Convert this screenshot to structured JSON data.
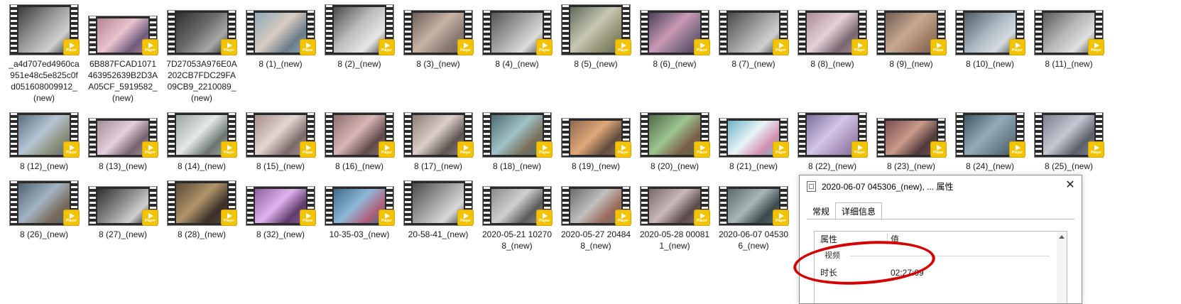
{
  "files": [
    {
      "name": "_a4d707ed4960ca951e48c5e825c0fd051608009912_(new)",
      "colors": [
        "#3a3a3a",
        "#9a9a9a",
        "#cfcfcf"
      ]
    },
    {
      "name": "6B887FCAD1071463952639B2D3AA05CF_5919582_(new)",
      "colors": [
        "#b3838f",
        "#e9c3cf",
        "#6e5a7a"
      ]
    },
    {
      "name": "7D27053A976E0A202CB7FDC29FA09CB9_2210089_(new)",
      "colors": [
        "#2f2f2f",
        "#6a6a6a",
        "#a8a8a8"
      ]
    },
    {
      "name": "8 (1)_(new)",
      "colors": [
        "#8fa7b6",
        "#d8ccc2",
        "#6a7b88"
      ]
    },
    {
      "name": "8 (2)_(new)",
      "colors": [
        "#4a4a4a",
        "#bdbdbd",
        "#e6e6e6"
      ]
    },
    {
      "name": "8 (3)_(new)",
      "colors": [
        "#6a5e58",
        "#c9b3a6",
        "#8a7b72"
      ]
    },
    {
      "name": "8 (4)_(new)",
      "colors": [
        "#555555",
        "#a6a6a6",
        "#dcdcdc"
      ]
    },
    {
      "name": "8 (5)_(new)",
      "colors": [
        "#5d6a5a",
        "#c7c7b5",
        "#8f8f70"
      ]
    },
    {
      "name": "8 (6)_(new)",
      "colors": [
        "#4c3f5a",
        "#c99ab5",
        "#7b6680"
      ]
    },
    {
      "name": "8 (7)_(new)",
      "colors": [
        "#4a4a4a",
        "#9c9c9c",
        "#d0d0d0"
      ]
    },
    {
      "name": "8 (8)_(new)",
      "colors": [
        "#a88c94",
        "#e5d0d7",
        "#786670"
      ]
    },
    {
      "name": "8 (9)_(new)",
      "colors": [
        "#6f5b52",
        "#c7a98f",
        "#9e7c63"
      ]
    },
    {
      "name": "8 (10)_(new)",
      "colors": [
        "#4f5a63",
        "#a7b4bf",
        "#d5dbe0"
      ]
    },
    {
      "name": "8 (11)_(new)",
      "colors": [
        "#5a5a5a",
        "#b4b4b4",
        "#e0e0e0"
      ]
    },
    {
      "name": "8 (12)_(new)",
      "colors": [
        "#5b6a7a",
        "#b7c6d4",
        "#8a8f7a"
      ]
    },
    {
      "name": "8 (13)_(new)",
      "colors": [
        "#a38d99",
        "#e3d0da",
        "#776270"
      ]
    },
    {
      "name": "8 (14)_(new)",
      "colors": [
        "#9aa3a0",
        "#e4e8e6",
        "#6c7572"
      ]
    },
    {
      "name": "8 (15)_(new)",
      "colors": [
        "#a58f8f",
        "#e3d6cf",
        "#7a6a6a"
      ]
    },
    {
      "name": "8 (16)_(new)",
      "colors": [
        "#8c6f6f",
        "#d9b5b5",
        "#5e4a4a"
      ]
    },
    {
      "name": "8 (17)_(new)",
      "colors": [
        "#8a7d78",
        "#dccfca",
        "#5e5450"
      ]
    },
    {
      "name": "8 (18)_(new)",
      "colors": [
        "#4d6a6f",
        "#9fc2c7",
        "#7b6f5a"
      ]
    },
    {
      "name": "8 (19)_(new)",
      "colors": [
        "#8e6a4f",
        "#e0a878",
        "#5f4c3e"
      ]
    },
    {
      "name": "8 (20)_(new)",
      "colors": [
        "#4f6a4a",
        "#9dc48f",
        "#7a5f4a"
      ]
    },
    {
      "name": "8 (21)_(new)",
      "colors": [
        "#6fb3c9",
        "#e8f3f6",
        "#d28fb0"
      ]
    },
    {
      "name": "8 (22)_(new)",
      "colors": [
        "#7a6f9a",
        "#d3c6e6",
        "#a68fb8"
      ]
    },
    {
      "name": "8 (23)_(new)",
      "colors": [
        "#7a4f4f",
        "#c99a8a",
        "#4f3a3a"
      ]
    },
    {
      "name": "8 (24)_(new)",
      "colors": [
        "#3f5560",
        "#94aab8",
        "#6a7f8c"
      ]
    },
    {
      "name": "8 (25)_(new)",
      "colors": [
        "#7a7f8c",
        "#c3c8d3",
        "#5a5f6a"
      ]
    },
    {
      "name": "8 (26)_(new)",
      "colors": [
        "#4f5f6f",
        "#a3b5c3",
        "#7a6a5a"
      ]
    },
    {
      "name": "8 (27)_(new)",
      "colors": [
        "#2f2f2f",
        "#8a8a8a",
        "#cfcfcf"
      ]
    },
    {
      "name": "8 (28)_(new)",
      "colors": [
        "#5a4a3a",
        "#b0946a",
        "#3a3028"
      ]
    },
    {
      "name": "8 (32)_(new)",
      "colors": [
        "#8a5f9a",
        "#e0b5ef",
        "#5f3a6a"
      ]
    },
    {
      "name": "10-35-03_(new)",
      "colors": [
        "#3f6a8a",
        "#8fb8d8",
        "#b05f7a"
      ]
    },
    {
      "name": "20-58-41_(new)",
      "colors": [
        "#4a4a4a",
        "#a0a0a0",
        "#d8d8d8"
      ]
    },
    {
      "name": "2020-05-21 102708_(new)",
      "colors": [
        "#8a8a8a",
        "#d0d0d0",
        "#5a5a5a"
      ]
    },
    {
      "name": "2020-05-27 204848_(new)",
      "colors": [
        "#6a6a6a",
        "#c0c0c0",
        "#9a6a5a"
      ]
    },
    {
      "name": "2020-05-28 000811_(new)",
      "colors": [
        "#7a6a6a",
        "#c8b8b8",
        "#5a4a4a"
      ]
    },
    {
      "name": "2020-06-07 045306_(new)",
      "colors": [
        "#5a6a6a",
        "#a8b8b8",
        "#3a4a4a"
      ]
    }
  ],
  "badge_text": "Player",
  "dialog": {
    "title": "2020-06-07 045306_(new), ... 属性",
    "close_glyph": "✕",
    "tabs": [
      {
        "label": "常规",
        "active": false
      },
      {
        "label": "详细信息",
        "active": true
      }
    ],
    "columns": {
      "property": "属性",
      "value": "值"
    },
    "section": "视频",
    "rows": [
      {
        "property": "时长",
        "value": "02:27:09"
      }
    ]
  }
}
